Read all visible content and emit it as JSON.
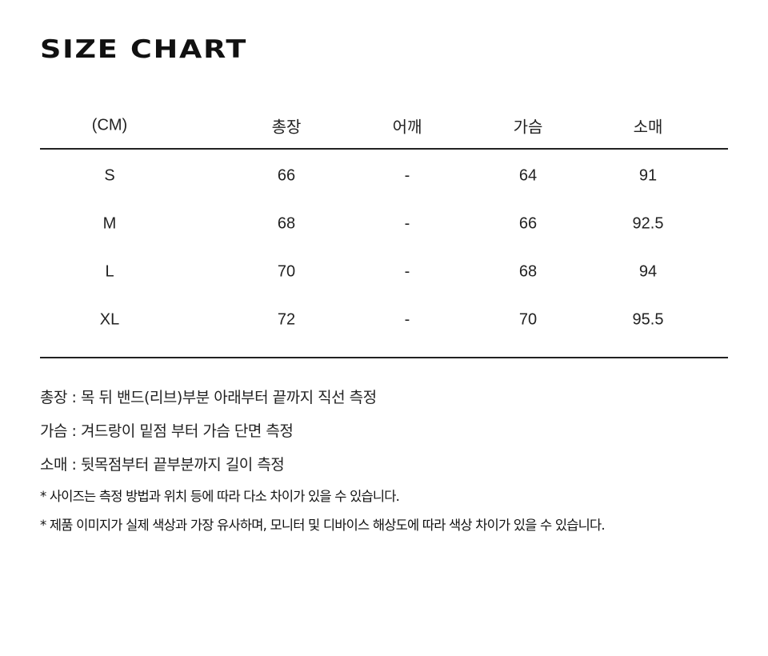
{
  "title": "SIZE CHART",
  "table": {
    "headers": [
      "(CM)",
      "총장",
      "어깨",
      "가슴",
      "소매"
    ],
    "rows": [
      [
        "S",
        "66",
        "-",
        "64",
        "91"
      ],
      [
        "M",
        "68",
        "-",
        "66",
        "92.5"
      ],
      [
        "L",
        "70",
        "-",
        "68",
        "94"
      ],
      [
        "XL",
        "72",
        "-",
        "70",
        "95.5"
      ]
    ]
  },
  "notes": [
    "총장 : 목 뒤 밴드(리브)부분 아래부터 끝까지 직선 측정",
    "가슴 : 겨드랑이 밑점 부터 가슴 단면 측정",
    "소매 : 뒷목점부터 끝부분까지 길이 측정"
  ],
  "disclaimers": [
    "* 사이즈는 측정 방법과 위치 등에 따라 다소 차이가 있을 수 있습니다.",
    "* 제품 이미지가 실제 색상과 가장 유사하며, 모니터 및 디바이스 해상도에 따라 색상 차이가 있을 수 있습니다."
  ]
}
